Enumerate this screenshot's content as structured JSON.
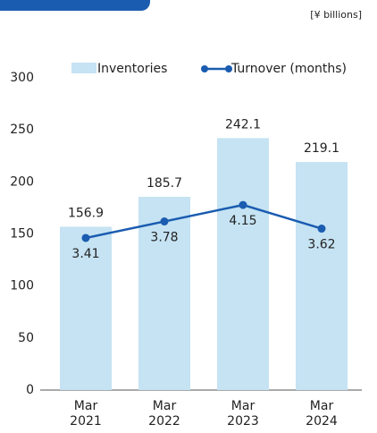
{
  "chart_data": {
    "type": "bar_line",
    "unit_label": "[¥ billions]",
    "categories": [
      "Mar 2021",
      "Mar 2022",
      "Mar 2023",
      "Mar 2024"
    ],
    "series": [
      {
        "name": "Inventories",
        "type": "bar",
        "color": "#c5e3f3",
        "values": [
          156.9,
          185.7,
          242.1,
          219.1
        ]
      },
      {
        "name": "Turnover (months)",
        "type": "line",
        "axis": "y2",
        "color": "#1a5cb0",
        "values": [
          3.41,
          3.78,
          4.15,
          3.62
        ]
      }
    ],
    "ylim": [
      0,
      300
    ],
    "yticks": [
      0,
      50,
      100,
      150,
      200,
      250,
      300
    ],
    "y2lim": [
      0,
      7
    ]
  }
}
